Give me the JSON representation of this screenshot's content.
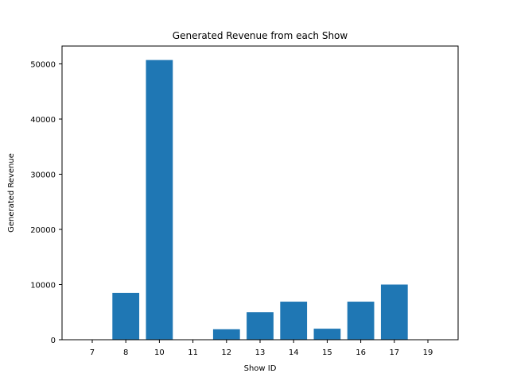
{
  "chart_data": {
    "type": "bar",
    "title": "Generated Revenue from each Show",
    "xlabel": "Show ID",
    "ylabel": "Generated Revenue",
    "categories": [
      "7",
      "8",
      "10",
      "11",
      "12",
      "13",
      "14",
      "15",
      "16",
      "17",
      "19"
    ],
    "values": [
      0,
      8500,
      50700,
      0,
      1900,
      5000,
      6900,
      2000,
      6900,
      10000,
      0
    ],
    "ylim": [
      0,
      53235
    ],
    "yticks": [
      0,
      10000,
      20000,
      30000,
      40000,
      50000
    ],
    "grid": false,
    "bar_color": "#1f77b4"
  }
}
